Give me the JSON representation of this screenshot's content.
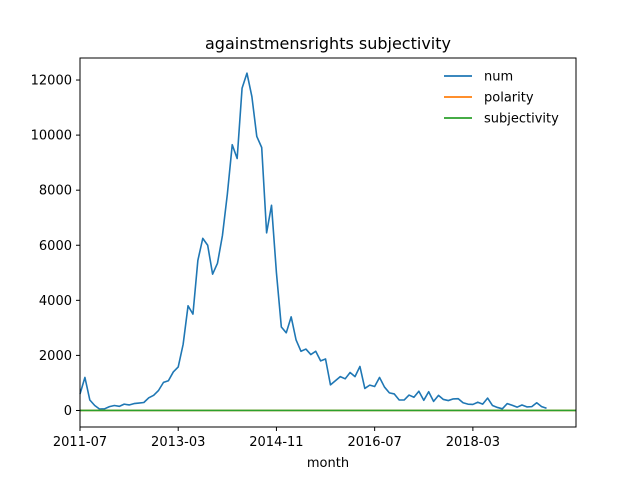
{
  "chart_data": {
    "type": "line",
    "title": "againstmensrights subjectivity",
    "xlabel": "month",
    "ylabel": "",
    "x_start": "2011-07",
    "x_end": "2019-12",
    "xlim": [
      "2011-07",
      "2019-12"
    ],
    "ylim": [
      -600,
      12800
    ],
    "x_ticks": [
      "2011-07",
      "2013-03",
      "2014-11",
      "2016-07",
      "2018-03"
    ],
    "y_ticks": [
      0,
      2000,
      4000,
      6000,
      8000,
      10000,
      12000
    ],
    "grid": false,
    "legend_position": "top-right",
    "series": [
      {
        "name": "num",
        "color": "#1f77b4",
        "values": [
          600,
          1200,
          380,
          180,
          50,
          60,
          140,
          180,
          150,
          230,
          200,
          250,
          270,
          290,
          460,
          550,
          730,
          1020,
          1080,
          1400,
          1580,
          2400,
          3800,
          3500,
          5450,
          6250,
          6000,
          4950,
          5350,
          6350,
          7850,
          9650,
          9150,
          11700,
          12250,
          11400,
          9950,
          9550,
          6450,
          7450,
          5000,
          3030,
          2820,
          3400,
          2560,
          2150,
          2230,
          2030,
          2150,
          1800,
          1870,
          930,
          1080,
          1230,
          1150,
          1380,
          1230,
          1600,
          800,
          920,
          870,
          1200,
          850,
          640,
          600,
          380,
          380,
          560,
          480,
          700,
          370,
          680,
          330,
          550,
          400,
          360,
          420,
          430,
          280,
          230,
          220,
          300,
          230,
          450,
          180,
          110,
          60,
          250,
          190,
          120,
          200,
          130,
          140,
          280,
          140,
          80
        ]
      },
      {
        "name": "polarity",
        "color": "#ff7f0e",
        "values": [
          0,
          0
        ]
      },
      {
        "name": "subjectivity",
        "color": "#2ca02c",
        "values": [
          0,
          0
        ]
      }
    ]
  }
}
